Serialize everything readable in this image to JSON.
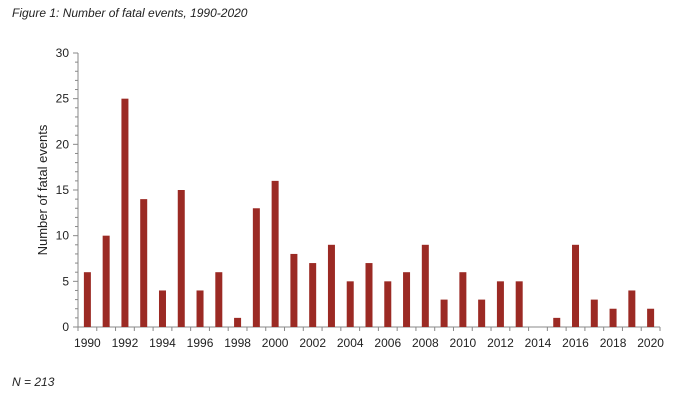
{
  "figure": {
    "title": "Figure 1: Number of fatal events, 1990-2020",
    "footnote": "N = 213"
  },
  "chart_data": {
    "type": "bar",
    "ylabel": "Number of fatal events",
    "xlabel": "",
    "ylim": [
      0,
      30
    ],
    "y_ticks": [
      0,
      5,
      10,
      15,
      20,
      25,
      30
    ],
    "x_tick_labels": [
      "1990",
      "1992",
      "1994",
      "1996",
      "1998",
      "2000",
      "2002",
      "2004",
      "2006",
      "2008",
      "2010",
      "2012",
      "2014",
      "2016",
      "2018",
      "2020"
    ],
    "categories": [
      "1990",
      "1991",
      "1992",
      "1993",
      "1994",
      "1995",
      "1996",
      "1997",
      "1998",
      "1999",
      "2000",
      "2001",
      "2002",
      "2003",
      "2004",
      "2005",
      "2006",
      "2007",
      "2008",
      "2009",
      "2010",
      "2011",
      "2012",
      "2013",
      "2014",
      "2015",
      "2016",
      "2017",
      "2018",
      "2019",
      "2020"
    ],
    "values": [
      6,
      10,
      25,
      14,
      4,
      15,
      4,
      6,
      1,
      13,
      16,
      8,
      7,
      9,
      5,
      7,
      5,
      6,
      9,
      3,
      6,
      3,
      5,
      5,
      0,
      1,
      9,
      3,
      2,
      4,
      2
    ],
    "bar_color": "#9b2a24",
    "grid": false
  }
}
